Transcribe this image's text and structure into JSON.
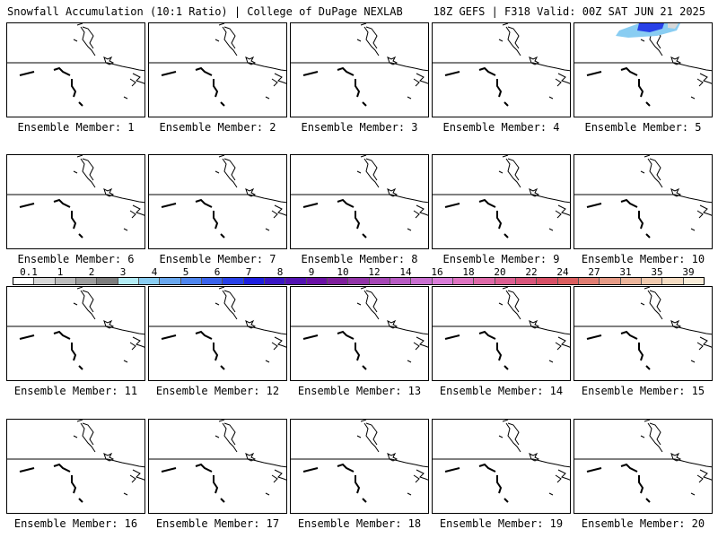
{
  "header": {
    "title_left": "Snowfall Accumulation (10:1 Ratio) | College of DuPage NEXLAB",
    "title_right": "18Z GEFS | F318 Valid: 00Z SAT JUN 21 2025"
  },
  "panels": [
    {
      "label": "Ensemble Member: 1"
    },
    {
      "label": "Ensemble Member: 2"
    },
    {
      "label": "Ensemble Member: 3"
    },
    {
      "label": "Ensemble Member: 4"
    },
    {
      "label": "Ensemble Member: 5"
    },
    {
      "label": "Ensemble Member: 6"
    },
    {
      "label": "Ensemble Member: 7"
    },
    {
      "label": "Ensemble Member: 8"
    },
    {
      "label": "Ensemble Member: 9"
    },
    {
      "label": "Ensemble Member: 10"
    },
    {
      "label": "Ensemble Member: 11"
    },
    {
      "label": "Ensemble Member: 12"
    },
    {
      "label": "Ensemble Member: 13"
    },
    {
      "label": "Ensemble Member: 14"
    },
    {
      "label": "Ensemble Member: 15"
    },
    {
      "label": "Ensemble Member: 16"
    },
    {
      "label": "Ensemble Member: 17"
    },
    {
      "label": "Ensemble Member: 18"
    },
    {
      "label": "Ensemble Member: 19"
    },
    {
      "label": "Ensemble Member: 20"
    }
  ],
  "colorbar": {
    "labels": [
      "0.1",
      "1",
      "2",
      "3",
      "4",
      "5",
      "6",
      "7",
      "8",
      "9",
      "10",
      "12",
      "14",
      "16",
      "18",
      "20",
      "22",
      "24",
      "27",
      "31",
      "35",
      "39"
    ],
    "colors": [
      "#ffffff",
      "#d8d8d8",
      "#bdbdbd",
      "#9e9e9e",
      "#7d7d7d",
      "#b3ecf5",
      "#89cdf2",
      "#6aa8ef",
      "#4f86ee",
      "#3a63ec",
      "#2841e8",
      "#1d1fdf",
      "#3a17c4",
      "#5313b2",
      "#6a10a5",
      "#7f1f9c",
      "#9234a8",
      "#a647b6",
      "#b85bc4",
      "#c96fd0",
      "#d97cd8",
      "#de74c2",
      "#de6aa9",
      "#dc5f92",
      "#d9567c",
      "#d75066",
      "#db5e5f",
      "#e07d72",
      "#e69b86",
      "#ec b59b",
      "#f1caae",
      "#f5dcc2",
      "#f9ecd8"
    ]
  }
}
